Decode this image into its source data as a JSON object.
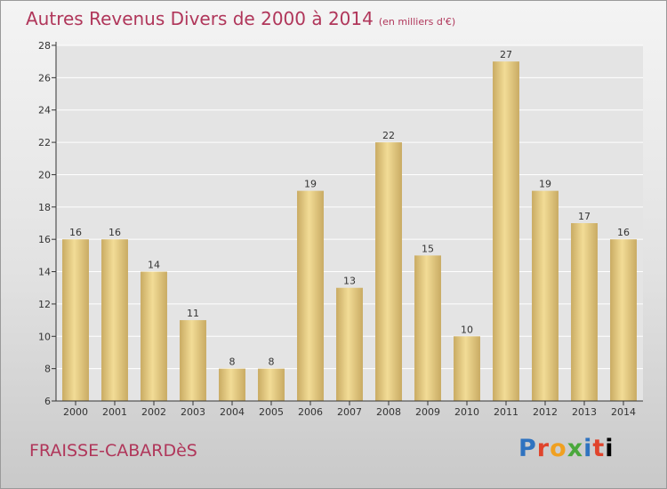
{
  "header": {
    "title": "Autres Revenus Divers de 2000 à 2014",
    "subtitle": "(en milliers d'€)"
  },
  "footer": {
    "commune": "FRAISSE-CABARDèS",
    "logo": "Proxiti"
  },
  "chart_data": {
    "type": "bar",
    "title": "Autres Revenus Divers de 2000 à 2014",
    "subtitle": "(en milliers d'€)",
    "categories": [
      "2000",
      "2001",
      "2002",
      "2003",
      "2004",
      "2005",
      "2006",
      "2007",
      "2008",
      "2009",
      "2010",
      "2011",
      "2012",
      "2013",
      "2014"
    ],
    "values": [
      16,
      16,
      14,
      11,
      8,
      8,
      19,
      13,
      22,
      15,
      10,
      27,
      19,
      17,
      16
    ],
    "ylim": [
      6,
      28
    ],
    "yticks": [
      6,
      8,
      10,
      12,
      14,
      16,
      18,
      20,
      22,
      24,
      26,
      28
    ],
    "grid": true,
    "colors": {
      "bar_light": "#f2dc96",
      "bar_dark": "#c9ab63",
      "axis": "#333333",
      "grid": "#ffffff",
      "plot_bg": "#e4e4e4"
    }
  }
}
